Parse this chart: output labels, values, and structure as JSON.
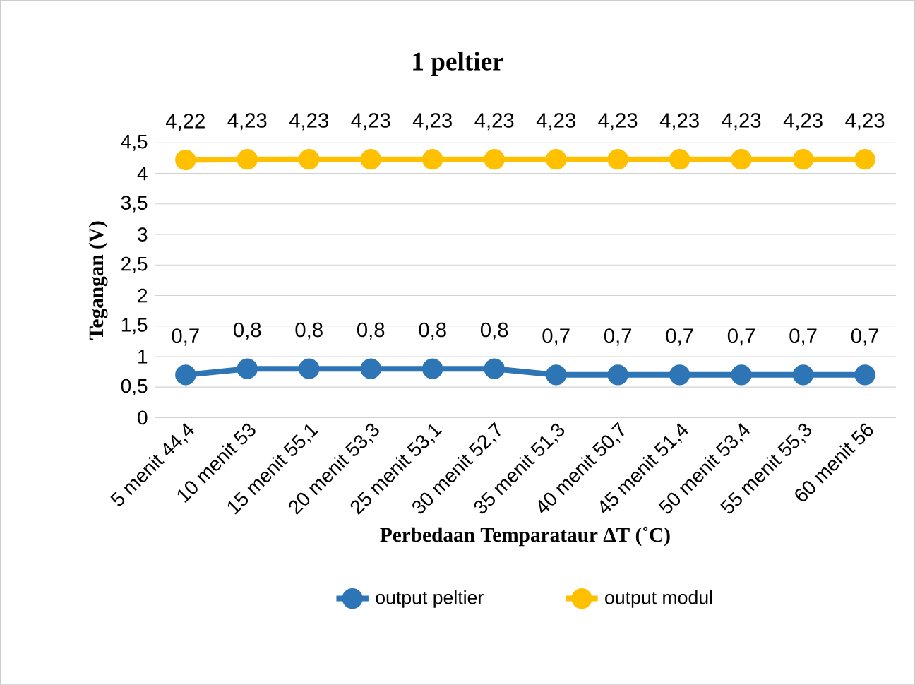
{
  "chart_data": {
    "type": "line",
    "title": "1 peltier",
    "xlabel": "Perbedaan Temparataur ΔT (˚C)",
    "ylabel": "Tegangan (V)",
    "categories": [
      "5 menit 44,4",
      "10 menit 53",
      "15 menit 55,1",
      "20 menit 53,3",
      "25 menit 53,1",
      "30 menit 52,7",
      "35 menit 51,3",
      "40 menit 50,7",
      "45 menit 51,4",
      "50 menit 53,4",
      "55 menit 55,3",
      "60 menit 56"
    ],
    "series": [
      {
        "name": "output peltier",
        "color": "#2e75b6",
        "values": [
          0.7,
          0.8,
          0.8,
          0.8,
          0.8,
          0.8,
          0.7,
          0.7,
          0.7,
          0.7,
          0.7,
          0.7
        ],
        "value_labels": [
          "0,7",
          "0,8",
          "0,8",
          "0,8",
          "0,8",
          "0,8",
          "0,7",
          "0,7",
          "0,7",
          "0,7",
          "0,7",
          "0,7"
        ]
      },
      {
        "name": "output modul",
        "color": "#ffc000",
        "values": [
          4.22,
          4.23,
          4.23,
          4.23,
          4.23,
          4.23,
          4.23,
          4.23,
          4.23,
          4.23,
          4.23,
          4.23
        ],
        "value_labels": [
          "4,22",
          "4,23",
          "4,23",
          "4,23",
          "4,23",
          "4,23",
          "4,23",
          "4,23",
          "4,23",
          "4,23",
          "4,23",
          "4,23"
        ]
      }
    ],
    "ylim": [
      0,
      4.5
    ],
    "yticks": [
      0,
      {
        "value": 0.5,
        "label": "0,5"
      },
      1,
      {
        "value": 1.5,
        "label": "1,5"
      },
      2,
      {
        "value": 2.5,
        "label": "2,5"
      },
      3,
      {
        "value": 3.5,
        "label": "3,5"
      },
      4,
      {
        "value": 4.5,
        "label": "4,5"
      }
    ],
    "grid": "y",
    "legend": "bottom",
    "marker": "circle",
    "line_style": "solid"
  }
}
